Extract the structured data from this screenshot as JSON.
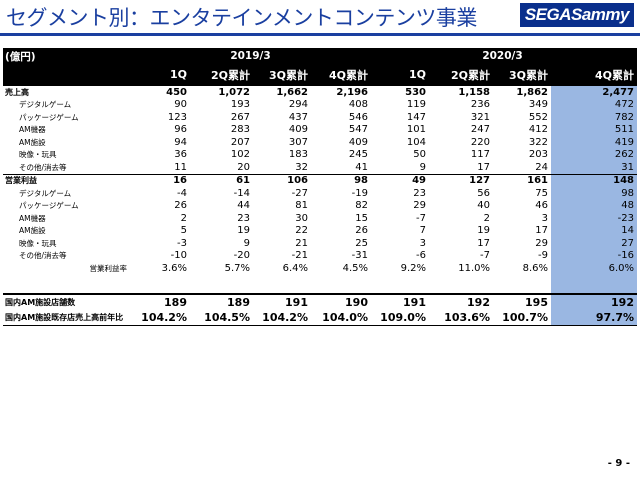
{
  "header": {
    "title": "セグメント別：エンタテインメントコンテンツ事業",
    "logo_text": "SEGASammy"
  },
  "table": {
    "unit_label": "(億円)",
    "years": [
      "2019/3",
      "2020/3"
    ],
    "columns": [
      "1Q",
      "2Q累計",
      "3Q累計",
      "4Q累計",
      "1Q",
      "2Q累計",
      "3Q累計",
      "4Q累計"
    ],
    "rows": [
      {
        "label": "売上高",
        "kind": "bold",
        "values": [
          "450",
          "1,072",
          "1,662",
          "2,196",
          "530",
          "1,158",
          "1,862",
          "2,477"
        ]
      },
      {
        "label": "デジタルゲーム",
        "kind": "sub",
        "values": [
          "90",
          "193",
          "294",
          "408",
          "119",
          "236",
          "349",
          "472"
        ]
      },
      {
        "label": "パッケージゲーム",
        "kind": "sub",
        "values": [
          "123",
          "267",
          "437",
          "546",
          "147",
          "321",
          "552",
          "782"
        ]
      },
      {
        "label": "AM機器",
        "kind": "sub",
        "values": [
          "96",
          "283",
          "409",
          "547",
          "101",
          "247",
          "412",
          "511"
        ]
      },
      {
        "label": "AM施設",
        "kind": "sub",
        "values": [
          "94",
          "207",
          "307",
          "409",
          "104",
          "220",
          "322",
          "419"
        ]
      },
      {
        "label": "映像・玩具",
        "kind": "sub",
        "values": [
          "36",
          "102",
          "183",
          "245",
          "50",
          "117",
          "203",
          "262"
        ]
      },
      {
        "label": "その他/消去等",
        "kind": "sub",
        "values": [
          "11",
          "20",
          "32",
          "41",
          "9",
          "17",
          "24",
          "31"
        ]
      },
      {
        "label": "営業利益",
        "kind": "bold",
        "values": [
          "16",
          "61",
          "106",
          "98",
          "49",
          "127",
          "161",
          "148"
        ]
      },
      {
        "label": "デジタルゲーム",
        "kind": "sub",
        "values": [
          "-4",
          "-14",
          "-27",
          "-19",
          "23",
          "56",
          "75",
          "98"
        ]
      },
      {
        "label": "パッケージゲーム",
        "kind": "sub",
        "values": [
          "26",
          "44",
          "81",
          "82",
          "29",
          "40",
          "46",
          "48"
        ]
      },
      {
        "label": "AM機器",
        "kind": "sub",
        "values": [
          "2",
          "23",
          "30",
          "15",
          "-7",
          "2",
          "3",
          "-23"
        ]
      },
      {
        "label": "AM施設",
        "kind": "sub",
        "values": [
          "5",
          "19",
          "22",
          "26",
          "7",
          "19",
          "17",
          "14"
        ]
      },
      {
        "label": "映像・玩具",
        "kind": "sub",
        "values": [
          "-3",
          "9",
          "21",
          "25",
          "3",
          "17",
          "29",
          "27"
        ]
      },
      {
        "label": "その他/消去等",
        "kind": "sub",
        "values": [
          "-10",
          "-20",
          "-21",
          "-31",
          "-6",
          "-7",
          "-9",
          "-16"
        ]
      },
      {
        "label": "営業利益率",
        "kind": "rate",
        "values": [
          "3.6%",
          "5.7%",
          "6.4%",
          "4.5%",
          "9.2%",
          "11.0%",
          "8.6%",
          "6.0%"
        ]
      }
    ],
    "kpis": [
      {
        "label": "国内AM施設店舗数",
        "values": [
          "189",
          "189",
          "191",
          "190",
          "191",
          "192",
          "195",
          "192"
        ]
      },
      {
        "label": "国内AM施設既存店売上高前年比",
        "values": [
          "104.2%",
          "104.5%",
          "104.2%",
          "104.0%",
          "109.0%",
          "103.6%",
          "100.7%",
          "97.7%"
        ]
      }
    ]
  },
  "footer": {
    "page": "- 9 -"
  },
  "colors": {
    "title": "#1a3fa0",
    "highlight": "#9ab7e2",
    "header_bg": "#000000"
  }
}
